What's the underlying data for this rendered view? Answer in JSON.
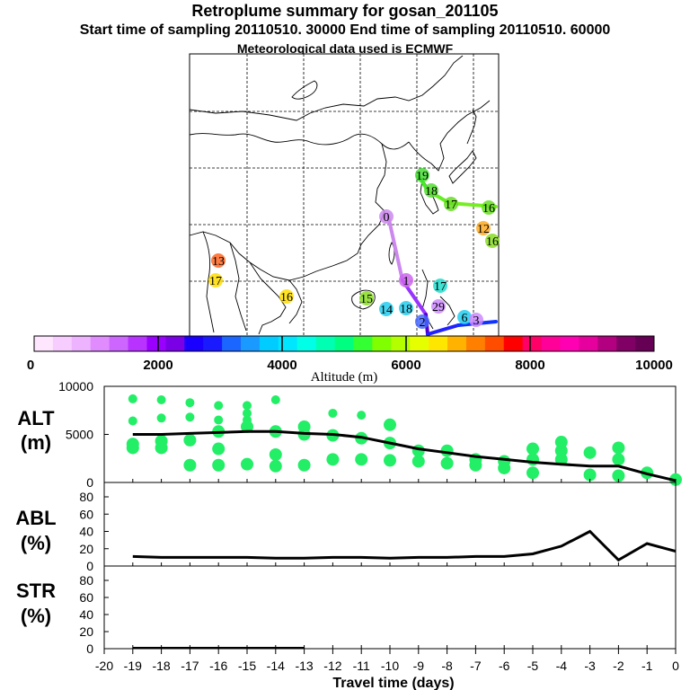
{
  "header": {
    "title": "Retroplume summary for gosan_201105",
    "sampling": "Start time of sampling 20110510. 30000     End time of sampling 20110510. 60000",
    "meteo": "Meteorological data used is ECMWF"
  },
  "colorbar": {
    "ticks": [
      "0",
      "2000",
      "4000",
      "6000",
      "8000",
      "10000"
    ],
    "label": "Altitude (m)",
    "colors": [
      "#ffe6ff",
      "#f7ccff",
      "#eeb3ff",
      "#e08cff",
      "#cc66ff",
      "#b833ff",
      "#9900ff",
      "#7a00e6",
      "#1a00ff",
      "#1a1aff",
      "#1a66ff",
      "#1a99ff",
      "#00ccff",
      "#00e6ff",
      "#00ffe6",
      "#00ffb3",
      "#00ff80",
      "#33ff33",
      "#80ff00",
      "#b3ff00",
      "#e6ff00",
      "#ffe600",
      "#ffb300",
      "#ff8000",
      "#ff4d00",
      "#ff0000",
      "#ff0066",
      "#ff0099",
      "#ff00b3",
      "#e6009e",
      "#b30080",
      "#800066",
      "#660055"
    ]
  },
  "map": {
    "labels": [
      {
        "t": "19",
        "c": "#44dd33"
      },
      {
        "t": "18",
        "c": "#55dd33"
      },
      {
        "t": "17",
        "c": "#66dd22"
      },
      {
        "t": "16",
        "c": "#66dd22"
      },
      {
        "t": "0",
        "c": "#cc88ee"
      },
      {
        "t": "12",
        "c": "#ffaa22"
      },
      {
        "t": "16",
        "c": "#88dd22"
      },
      {
        "t": "13",
        "c": "#ff6622"
      },
      {
        "t": "17",
        "c": "#ffdd00"
      },
      {
        "t": "16",
        "c": "#ffdd00"
      },
      {
        "t": "1",
        "c": "#cc66ee"
      },
      {
        "t": "17",
        "c": "#22ddcc"
      },
      {
        "t": "15",
        "c": "#88dd22"
      },
      {
        "t": "14",
        "c": "#22ccee"
      },
      {
        "t": "18",
        "c": "#22ccee"
      },
      {
        "t": "29",
        "c": "#cc88ff"
      },
      {
        "t": "2",
        "c": "#4466ff"
      },
      {
        "t": "6",
        "c": "#22ccee"
      },
      {
        "t": "3",
        "c": "#cc88ff"
      }
    ]
  },
  "chart_data": [
    {
      "type": "scatter+line",
      "panel": "ALT",
      "ylabel": "ALT\n(m)",
      "ylim": [
        0,
        10000
      ],
      "yticks": [
        "10000",
        "5000",
        "0"
      ],
      "x": [
        -19,
        -18,
        -17,
        -16,
        -15,
        -14,
        -13,
        -12,
        -11,
        -10,
        -9,
        -8,
        -7,
        -6,
        -5,
        -4,
        -3,
        -2,
        -1,
        0
      ],
      "line": [
        5000,
        5000,
        5100,
        5200,
        5300,
        5300,
        5100,
        5000,
        4700,
        4100,
        3500,
        3100,
        2700,
        2400,
        2100,
        1900,
        1700,
        1700,
        900,
        200
      ],
      "points": [
        [
          -19,
          8700
        ],
        [
          -19,
          6400
        ],
        [
          -19,
          4000
        ],
        [
          -19,
          3600
        ],
        [
          -18,
          8600
        ],
        [
          -18,
          6700
        ],
        [
          -18,
          4300
        ],
        [
          -18,
          3600
        ],
        [
          -17,
          8300
        ],
        [
          -17,
          6800
        ],
        [
          -17,
          4400
        ],
        [
          -17,
          1800
        ],
        [
          -16,
          8000
        ],
        [
          -16,
          6500
        ],
        [
          -16,
          5300
        ],
        [
          -16,
          3500
        ],
        [
          -16,
          1800
        ],
        [
          -15,
          8000
        ],
        [
          -15,
          7200
        ],
        [
          -15,
          6500
        ],
        [
          -15,
          5800
        ],
        [
          -15,
          1900
        ],
        [
          -14,
          8600
        ],
        [
          -14,
          5300
        ],
        [
          -14,
          2900
        ],
        [
          -14,
          1700
        ],
        [
          -13,
          5800
        ],
        [
          -13,
          5000
        ],
        [
          -13,
          1800
        ],
        [
          -12,
          7200
        ],
        [
          -12,
          4900
        ],
        [
          -12,
          2400
        ],
        [
          -11,
          7000
        ],
        [
          -11,
          4600
        ],
        [
          -11,
          2400
        ],
        [
          -10,
          6000
        ],
        [
          -10,
          4100
        ],
        [
          -10,
          2300
        ],
        [
          -9,
          3300
        ],
        [
          -9,
          2200
        ],
        [
          -8,
          3300
        ],
        [
          -8,
          2000
        ],
        [
          -7,
          2400
        ],
        [
          -7,
          1800
        ],
        [
          -6,
          2200
        ],
        [
          -6,
          1500
        ],
        [
          -5,
          3500
        ],
        [
          -5,
          2400
        ],
        [
          -5,
          1000
        ],
        [
          -4,
          4200
        ],
        [
          -4,
          3300
        ],
        [
          -4,
          2400
        ],
        [
          -3,
          3100
        ],
        [
          -3,
          800
        ],
        [
          -2,
          3600
        ],
        [
          -2,
          2400
        ],
        [
          -2,
          700
        ],
        [
          -1,
          1000
        ],
        [
          0,
          300
        ]
      ]
    },
    {
      "type": "line",
      "panel": "ABL",
      "ylabel": "ABL\n(%)",
      "ylim": [
        0,
        80
      ],
      "yticks": [
        "80",
        "60",
        "40",
        "20",
        "0"
      ],
      "x": [
        -19,
        -18,
        -17,
        -16,
        -15,
        -14,
        -13,
        -12,
        -11,
        -10,
        -9,
        -8,
        -7,
        -6,
        -5,
        -4,
        -3,
        -2,
        -1,
        0
      ],
      "values": [
        11,
        10,
        10,
        10,
        10,
        9,
        9,
        10,
        10,
        9,
        10,
        10,
        11,
        11,
        14,
        23,
        40,
        7,
        26,
        17
      ]
    },
    {
      "type": "line",
      "panel": "STR",
      "ylabel": "STR\n(%)",
      "ylim": [
        0,
        80
      ],
      "yticks": [
        "80",
        "60",
        "40",
        "20",
        "0"
      ],
      "x": [
        -19,
        -13
      ],
      "values": [
        1,
        1
      ]
    }
  ],
  "xaxis": {
    "ticks": [
      "-20",
      "-19",
      "-18",
      "-17",
      "-16",
      "-15",
      "-14",
      "-13",
      "-12",
      "-11",
      "-10",
      "-9",
      "-8",
      "-7",
      "-6",
      "-5",
      "-4",
      "-3",
      "-2",
      "-1",
      "0"
    ],
    "label": "Travel time (days)"
  }
}
